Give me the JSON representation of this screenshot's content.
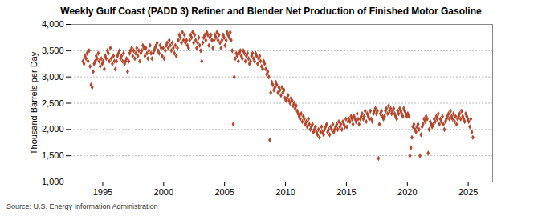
{
  "chart_data": {
    "type": "scatter",
    "title": "Weekly Gulf Coast (PADD 3) Refiner and Blender Net Production of Finished Motor Gasoline",
    "source": "Source: U.S. Energy Information Administration",
    "y_label": "Thousand Barrels per Day",
    "color": "#b5472c",
    "marker": "diamond",
    "grid": true,
    "xlim": [
      1992.4,
      2027
    ],
    "xticks": [
      1995,
      2000,
      2005,
      2010,
      2015,
      2020,
      2025
    ],
    "ylim": [
      1000,
      4000
    ],
    "yticks": [
      {
        "value": 1000,
        "label": "1,000"
      },
      {
        "value": 1500,
        "label": "1,500"
      },
      {
        "value": 2000,
        "label": "2,000"
      },
      {
        "value": 2500,
        "label": "2,500"
      },
      {
        "value": 3000,
        "label": "3,000"
      },
      {
        "value": 3500,
        "label": "3,500"
      },
      {
        "value": 4000,
        "label": "4,000"
      }
    ],
    "x": [
      1993.38,
      1993.46,
      1993.54,
      1993.63,
      1993.71,
      1993.79,
      1993.88,
      1993.96,
      1994.04,
      1994.13,
      1994.21,
      1994.29,
      1994.38,
      1994.46,
      1994.54,
      1994.63,
      1994.71,
      1994.79,
      1994.88,
      1994.96,
      1995.04,
      1995.13,
      1995.21,
      1995.29,
      1995.38,
      1995.46,
      1995.54,
      1995.63,
      1995.71,
      1995.79,
      1995.88,
      1995.96,
      1996.04,
      1996.13,
      1996.21,
      1996.29,
      1996.38,
      1996.46,
      1996.54,
      1996.63,
      1996.71,
      1996.79,
      1996.88,
      1996.96,
      1997.04,
      1997.13,
      1997.21,
      1997.29,
      1997.38,
      1997.46,
      1997.54,
      1997.63,
      1997.71,
      1997.79,
      1997.88,
      1997.96,
      1998.04,
      1998.13,
      1998.21,
      1998.29,
      1998.38,
      1998.46,
      1998.54,
      1998.63,
      1998.71,
      1998.79,
      1998.88,
      1998.96,
      1999.04,
      1999.13,
      1999.21,
      1999.29,
      1999.38,
      1999.46,
      1999.54,
      1999.63,
      1999.71,
      1999.79,
      1999.88,
      1999.96,
      2000.04,
      2000.13,
      2000.21,
      2000.29,
      2000.38,
      2000.46,
      2000.54,
      2000.63,
      2000.71,
      2000.79,
      2000.88,
      2000.96,
      2001.04,
      2001.13,
      2001.21,
      2001.29,
      2001.38,
      2001.46,
      2001.54,
      2001.63,
      2001.71,
      2001.79,
      2001.88,
      2001.96,
      2002.04,
      2002.13,
      2002.21,
      2002.29,
      2002.38,
      2002.46,
      2002.54,
      2002.63,
      2002.71,
      2002.79,
      2002.88,
      2002.96,
      2003.04,
      2003.13,
      2003.21,
      2003.29,
      2003.38,
      2003.46,
      2003.54,
      2003.63,
      2003.71,
      2003.79,
      2003.88,
      2003.96,
      2004.04,
      2004.13,
      2004.21,
      2004.29,
      2004.38,
      2004.46,
      2004.54,
      2004.63,
      2004.71,
      2004.79,
      2004.88,
      2004.96,
      2005.04,
      2005.13,
      2005.21,
      2005.29,
      2005.38,
      2005.46,
      2005.54,
      2005.63,
      2005.71,
      2005.79,
      2005.88,
      2005.96,
      2006.04,
      2006.13,
      2006.21,
      2006.29,
      2006.38,
      2006.46,
      2006.54,
      2006.63,
      2006.71,
      2006.79,
      2006.88,
      2006.96,
      2007.04,
      2007.13,
      2007.21,
      2007.29,
      2007.38,
      2007.46,
      2007.54,
      2007.63,
      2007.71,
      2007.79,
      2007.88,
      2007.96,
      2008.04,
      2008.13,
      2008.21,
      2008.29,
      2008.38,
      2008.46,
      2008.54,
      2008.63,
      2008.71,
      2008.79,
      2008.88,
      2008.96,
      2009.04,
      2009.13,
      2009.21,
      2009.29,
      2009.38,
      2009.46,
      2009.54,
      2009.63,
      2009.71,
      2009.79,
      2009.88,
      2009.96,
      2010.04,
      2010.13,
      2010.21,
      2010.29,
      2010.38,
      2010.46,
      2010.54,
      2010.63,
      2010.71,
      2010.79,
      2010.88,
      2010.96,
      2011.04,
      2011.13,
      2011.21,
      2011.29,
      2011.38,
      2011.46,
      2011.54,
      2011.63,
      2011.71,
      2011.79,
      2011.88,
      2011.96,
      2012.04,
      2012.13,
      2012.21,
      2012.29,
      2012.38,
      2012.46,
      2012.54,
      2012.63,
      2012.71,
      2012.79,
      2012.88,
      2012.96,
      2013.04,
      2013.13,
      2013.21,
      2013.29,
      2013.38,
      2013.46,
      2013.54,
      2013.63,
      2013.71,
      2013.79,
      2013.88,
      2013.96,
      2014.04,
      2014.13,
      2014.21,
      2014.29,
      2014.38,
      2014.46,
      2014.54,
      2014.63,
      2014.71,
      2014.79,
      2014.88,
      2014.96,
      2015.04,
      2015.13,
      2015.21,
      2015.29,
      2015.38,
      2015.46,
      2015.54,
      2015.63,
      2015.71,
      2015.79,
      2015.88,
      2015.96,
      2016.04,
      2016.13,
      2016.21,
      2016.29,
      2016.38,
      2016.46,
      2016.54,
      2016.63,
      2016.71,
      2016.79,
      2016.88,
      2016.96,
      2017.04,
      2017.13,
      2017.21,
      2017.29,
      2017.38,
      2017.46,
      2017.54,
      2017.63,
      2017.71,
      2017.79,
      2017.88,
      2017.96,
      2018.04,
      2018.13,
      2018.21,
      2018.29,
      2018.38,
      2018.46,
      2018.54,
      2018.63,
      2018.71,
      2018.79,
      2018.88,
      2018.96,
      2019.04,
      2019.13,
      2019.21,
      2019.29,
      2019.38,
      2019.46,
      2019.54,
      2019.63,
      2019.71,
      2019.79,
      2019.88,
      2019.96,
      2020.04,
      2020.13,
      2020.21,
      2020.29,
      2020.38,
      2020.46,
      2020.54,
      2020.63,
      2020.71,
      2020.79,
      2020.88,
      2020.96,
      2021.04,
      2021.13,
      2021.21,
      2021.29,
      2021.38,
      2021.46,
      2021.54,
      2021.63,
      2021.71,
      2021.79,
      2021.88,
      2021.96,
      2022.04,
      2022.13,
      2022.21,
      2022.29,
      2022.38,
      2022.46,
      2022.54,
      2022.63,
      2022.71,
      2022.79,
      2022.88,
      2022.96,
      2023.04,
      2023.13,
      2023.21,
      2023.29,
      2023.38,
      2023.46,
      2023.54,
      2023.63,
      2023.71,
      2023.79,
      2023.88,
      2023.96,
      2024.04,
      2024.13,
      2024.21,
      2024.29,
      2024.38,
      2024.46,
      2024.54,
      2024.63,
      2024.71,
      2024.79,
      2024.88,
      2024.96,
      2025.04,
      2025.13,
      2025.21,
      2025.29,
      2025.38
    ],
    "values": [
      3300,
      3250,
      3400,
      3350,
      3450,
      3300,
      3500,
      3200,
      2850,
      2800,
      3100,
      3250,
      3300,
      3400,
      3350,
      3450,
      3300,
      3200,
      3350,
      3250,
      3300,
      3150,
      3400,
      3350,
      3500,
      3450,
      3300,
      3550,
      3350,
      3250,
      3400,
      3300,
      3150,
      3300,
      3400,
      3450,
      3500,
      3350,
      3400,
      3300,
      3450,
      3250,
      3300,
      3350,
      3100,
      3300,
      3450,
      3500,
      3550,
      3400,
      3500,
      3350,
      3450,
      3550,
      3400,
      3500,
      3300,
      3450,
      3500,
      3600,
      3550,
      3400,
      3550,
      3450,
      3350,
      3500,
      3600,
      3450,
      3350,
      3450,
      3500,
      3550,
      3600,
      3650,
      3500,
      3450,
      3600,
      3550,
      3400,
      3550,
      3350,
      3500,
      3600,
      3650,
      3550,
      3700,
      3600,
      3500,
      3650,
      3550,
      3450,
      3600,
      3400,
      3550,
      3700,
      3800,
      3750,
      3650,
      3850,
      3700,
      3800,
      3650,
      3700,
      3600,
      3550,
      3700,
      3800,
      3750,
      3850,
      3650,
      3800,
      3700,
      3550,
      3650,
      3750,
      3600,
      3500,
      3300,
      3650,
      3750,
      3800,
      3700,
      3850,
      3800,
      3600,
      3750,
      3800,
      3700,
      3550,
      3700,
      3800,
      3750,
      3850,
      3700,
      3800,
      3650,
      3550,
      3700,
      3800,
      3750,
      3600,
      3700,
      3850,
      3800,
      3750,
      3850,
      3700,
      3500,
      2100,
      3000,
      3350,
      3450,
      3400,
      3300,
      3450,
      3500,
      3400,
      3350,
      3500,
      3450,
      3300,
      3400,
      3450,
      3350,
      3250,
      3300,
      3400,
      3450,
      3350,
      3300,
      3450,
      3400,
      3250,
      3350,
      3400,
      3300,
      3200,
      3150,
      3300,
      3250,
      3150,
      3050,
      3100,
      3000,
      1800,
      2700,
      2900,
      2850,
      2750,
      2800,
      2900,
      2850,
      2700,
      2800,
      2750,
      2650,
      2800,
      2700,
      2750,
      2600,
      2550,
      2600,
      2650,
      2550,
      2500,
      2600,
      2550,
      2450,
      2500,
      2400,
      2450,
      2350,
      2300,
      2250,
      2200,
      2300,
      2150,
      2250,
      2200,
      2100,
      2150,
      2050,
      2200,
      2100,
      2000,
      2050,
      2100,
      1950,
      2000,
      2050,
      1950,
      1900,
      2000,
      1850,
      1950,
      2050,
      1950,
      1900,
      2000,
      2050,
      2100,
      1950,
      2000,
      1900,
      2050,
      2000,
      2100,
      1950,
      2000,
      2050,
      2100,
      2000,
      2150,
      2050,
      2100,
      2000,
      2150,
      2100,
      2050,
      2200,
      2050,
      2150,
      2200,
      2150,
      2250,
      2200,
      2100,
      2250,
      2200,
      2150,
      2300,
      2200,
      2100,
      2200,
      2250,
      2300,
      2200,
      2250,
      2350,
      2150,
      2300,
      2250,
      2200,
      2350,
      2200,
      2150,
      2300,
      2350,
      2400,
      2300,
      2350,
      1450,
      2100,
      2300,
      2350,
      2250,
      2200,
      2250,
      2350,
      2400,
      2300,
      2450,
      2350,
      2400,
      2300,
      2350,
      2400,
      2300,
      2250,
      2200,
      2350,
      2300,
      2400,
      2350,
      2300,
      2250,
      2400,
      2350,
      2300,
      2250,
      2300,
      2250,
      1500,
      1650,
      1850,
      2050,
      2100,
      2000,
      1950,
      2050,
      2100,
      2000,
      1500,
      1900,
      2050,
      2100,
      2200,
      2150,
      2250,
      2200,
      1550,
      2000,
      2150,
      2100,
      2050,
      2100,
      2200,
      2150,
      2250,
      2200,
      2300,
      2100,
      2200,
      2150,
      2250,
      2100,
      2000,
      2150,
      2200,
      2250,
      2300,
      2200,
      2350,
      2250,
      2200,
      2300,
      2150,
      2250,
      2100,
      2200,
      2250,
      2300,
      2200,
      2350,
      2250,
      2200,
      2150,
      2300,
      2250,
      2200,
      2150,
      2050,
      2200,
      1950,
      1850
    ]
  }
}
